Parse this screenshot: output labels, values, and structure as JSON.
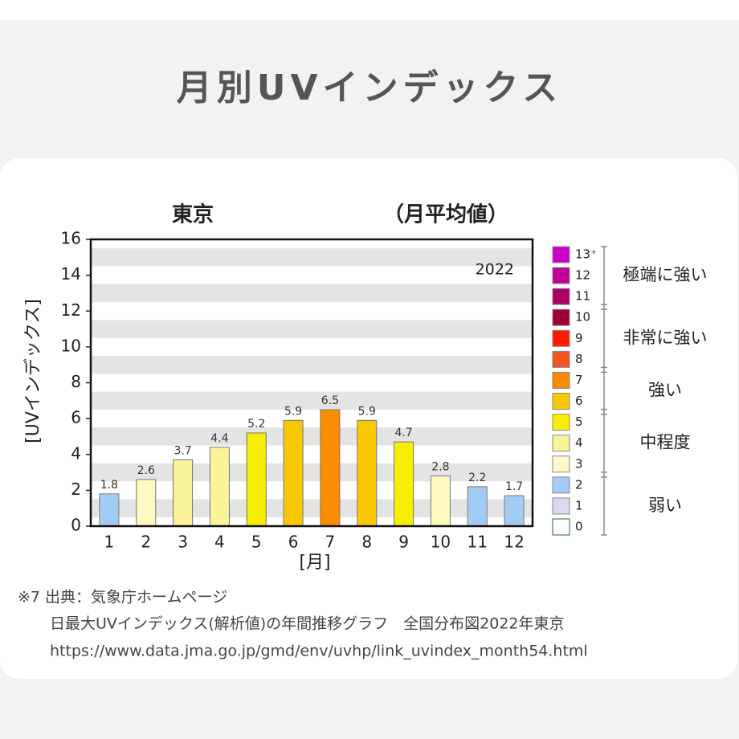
{
  "header": {
    "title": "月別UVインデックス"
  },
  "chart_data": {
    "type": "bar",
    "title": "東京",
    "subtitle": "（月平均値）",
    "annotation": "2022",
    "x_label": "[月]",
    "y_label": "[UVインデックス]",
    "categories": [
      "1",
      "2",
      "3",
      "4",
      "5",
      "6",
      "7",
      "8",
      "9",
      "10",
      "11",
      "12"
    ],
    "values": [
      1.8,
      2.6,
      3.7,
      4.4,
      5.2,
      5.9,
      6.5,
      5.9,
      4.7,
      2.8,
      2.2,
      1.7
    ],
    "colors": [
      "#a3ccf5",
      "#fdf9bf",
      "#faf39a",
      "#faf39a",
      "#f7ee00",
      "#fac800",
      "#fa8c00",
      "#fac800",
      "#f7ee00",
      "#fdf9bf",
      "#a3ccf5",
      "#a3ccf5"
    ],
    "ylim": [
      0,
      16
    ],
    "yticks": [
      0,
      2,
      4,
      6,
      8,
      10,
      12,
      14,
      16
    ],
    "grid": true,
    "legend": {
      "levels": [
        {
          "label": "13⁺",
          "color": "#cc00cc"
        },
        {
          "label": "12",
          "color": "#c0009a"
        },
        {
          "label": "11",
          "color": "#aa0066"
        },
        {
          "label": "10",
          "color": "#a00030"
        },
        {
          "label": "9",
          "color": "#ff1a00"
        },
        {
          "label": "8",
          "color": "#f25520"
        },
        {
          "label": "7",
          "color": "#fa8c00"
        },
        {
          "label": "6",
          "color": "#fac800"
        },
        {
          "label": "5",
          "color": "#f7ee00"
        },
        {
          "label": "4",
          "color": "#faf39a"
        },
        {
          "label": "3",
          "color": "#fdf9c8"
        },
        {
          "label": "2",
          "color": "#a3ccf5"
        },
        {
          "label": "1",
          "color": "#dcd8f2"
        },
        {
          "label": "0",
          "color": "#ffffff"
        }
      ],
      "groups": [
        "極端に強い",
        "非常に強い",
        "強い",
        "中程度",
        "弱い"
      ]
    }
  },
  "source": {
    "lines": [
      "※7 出典：気象庁ホームページ",
      "日最大UVインデックス(解析値)の年間推移グラフ　全国分布図2022年東京",
      "https://www.data.jma.go.jp/gmd/env/uvhp/link_uvindex_month54.html"
    ]
  }
}
